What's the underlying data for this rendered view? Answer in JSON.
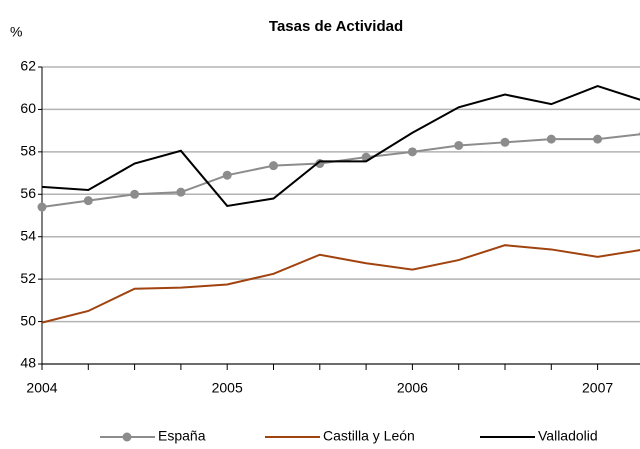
{
  "chart_data": {
    "type": "line",
    "title": "Tasas de Actividad",
    "y_label": "%",
    "categories": [
      "2004",
      null,
      null,
      null,
      "2005",
      null,
      null,
      null,
      "2006",
      null,
      null,
      null,
      "2007",
      null
    ],
    "series": [
      {
        "name": "España",
        "color": "#8c8c8c",
        "marker": "circle",
        "values": [
          55.4,
          55.7,
          56.0,
          56.1,
          56.9,
          57.35,
          57.45,
          57.75,
          58.0,
          58.3,
          58.45,
          58.6,
          58.6,
          58.85
        ]
      },
      {
        "name": "Castilla y León",
        "color": "#a0430f",
        "values": [
          49.95,
          50.5,
          51.55,
          51.6,
          51.75,
          52.25,
          53.15,
          52.75,
          52.45,
          52.9,
          53.6,
          53.4,
          53.05,
          53.4
        ]
      },
      {
        "name": "Valladolid",
        "color": "#000000",
        "values": [
          56.35,
          56.2,
          57.45,
          58.05,
          55.45,
          55.8,
          57.55,
          57.55,
          58.9,
          60.1,
          60.7,
          60.25,
          61.1,
          60.4
        ]
      }
    ],
    "ylim": [
      48,
      62
    ],
    "yticks": [
      48,
      50,
      52,
      54,
      56,
      58,
      60,
      62
    ],
    "grid": true,
    "legend": "bottom"
  }
}
